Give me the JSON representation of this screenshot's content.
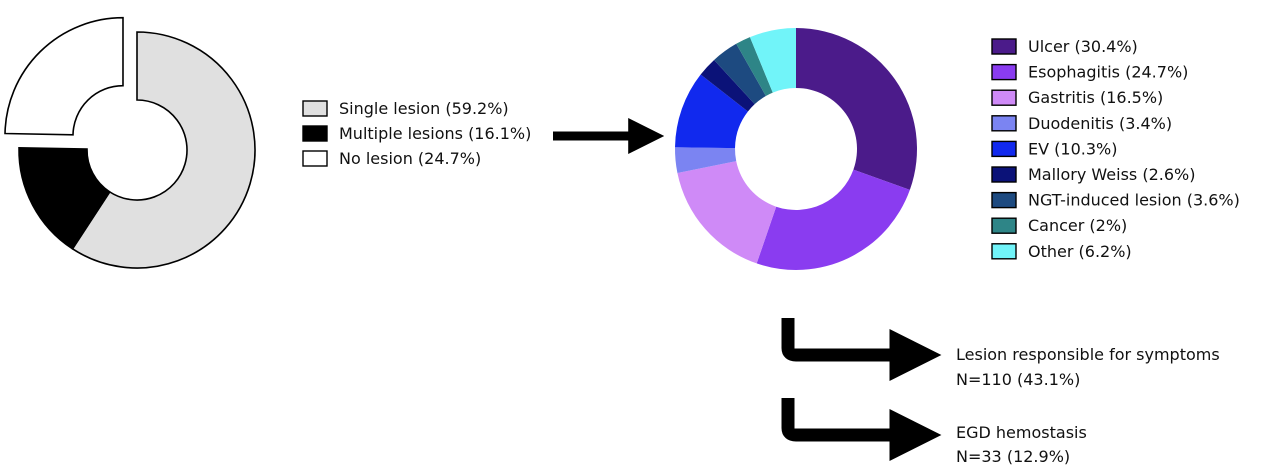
{
  "chart_data": [
    {
      "type": "pie",
      "variant": "donut",
      "categories": [
        "Single lesion (59.2%)",
        "Multiple lesions (16.1%)",
        "No lesion (24.7%)"
      ],
      "values": [
        59.2,
        16.1,
        24.7
      ],
      "colors": [
        "#e0e0e0",
        "#000000",
        "#ffffff"
      ],
      "exploded": [
        false,
        false,
        true
      ],
      "legend_position": "right"
    },
    {
      "type": "pie",
      "variant": "donut",
      "categories": [
        "Ulcer (30.4%)",
        "Esophagitis (24.7%)",
        "Gastritis (16.5%)",
        "Duodenitis (3.4%)",
        "EV (10.3%)",
        "Mallory Weiss (2.6%)",
        "NGT-induced lesion (3.6%)",
        "Cancer (2%)",
        "Other (6.2%)"
      ],
      "values": [
        30.4,
        24.7,
        16.5,
        3.4,
        10.3,
        2.6,
        3.6,
        2.0,
        6.2
      ],
      "colors": [
        "#4b1b8a",
        "#8a3cf0",
        "#cf8af7",
        "#7b84f2",
        "#1129ee",
        "#0b1278",
        "#1d4a80",
        "#2e8587",
        "#71f4f9"
      ],
      "legend_position": "right"
    }
  ],
  "flow": [
    {
      "label": "Lesion responsible for symptoms",
      "count": "N=110 (43.1%)"
    },
    {
      "label": "EGD hemostasis",
      "count": "N=33 (12.9%)"
    }
  ]
}
